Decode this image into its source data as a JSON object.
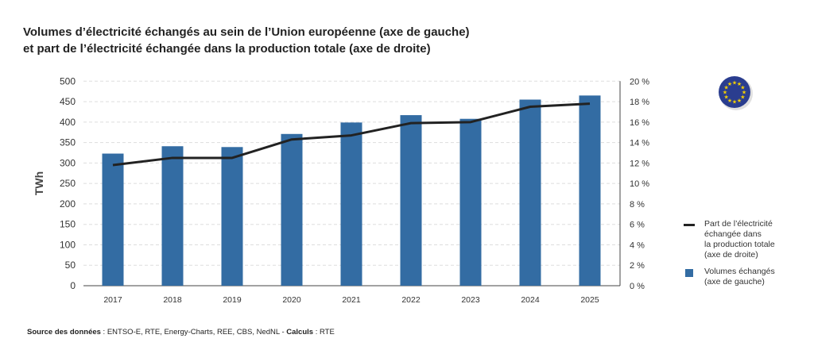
{
  "title_line1": "Volumes d’électricité échangés au sein de l’Union européenne (axe de gauche)",
  "title_line2": "et part de l’électricité échangée dans la production totale (axe de droite)",
  "source": {
    "label_bold": "Source des données",
    "text": " : ENTSO-E, RTE, Energy-Charts, REE, CBS, NedNL - ",
    "calc_bold": "Calculs",
    "calc_text": " : RTE"
  },
  "logo": "eu-flag",
  "colors": {
    "bars": "#336ca3",
    "line": "#222222",
    "grid": "#dddddd"
  },
  "chart_data": {
    "type": "bar+line",
    "categories": [
      "2017",
      "2018",
      "2019",
      "2020",
      "2021",
      "2022",
      "2023",
      "2024",
      "2025"
    ],
    "ylabel": "TWh",
    "ylim": [
      0,
      500
    ],
    "yticks": [
      "0",
      "50",
      "100",
      "150",
      "200",
      "250",
      "300",
      "350",
      "400",
      "450",
      "500"
    ],
    "y2lim": [
      0,
      20
    ],
    "y2ticks": [
      "0 %",
      "2 %",
      "4 %",
      "6 %",
      "8 %",
      "10 %",
      "12 %",
      "14 %",
      "16 %",
      "18 %",
      "20 %"
    ],
    "grid": true,
    "legend_position": "right",
    "series": [
      {
        "name": "Part de l’électricité échangée dans la production totale (axe de droite)",
        "type": "line",
        "axis": "right",
        "legend_lines": [
          "Part de l’électricité",
          "échangée dans",
          "la production totale",
          "(axe de droite)"
        ],
        "values": [
          11.8,
          12.5,
          12.5,
          14.3,
          14.7,
          15.9,
          16.0,
          17.5,
          17.8
        ]
      },
      {
        "name": "Volumes échangés (axe de gauche)",
        "type": "bar",
        "axis": "left",
        "legend_lines": [
          "Volumes échangés",
          "(axe de gauche)"
        ],
        "values": [
          323,
          341,
          339,
          371,
          399,
          417,
          408,
          455,
          465
        ]
      }
    ]
  }
}
